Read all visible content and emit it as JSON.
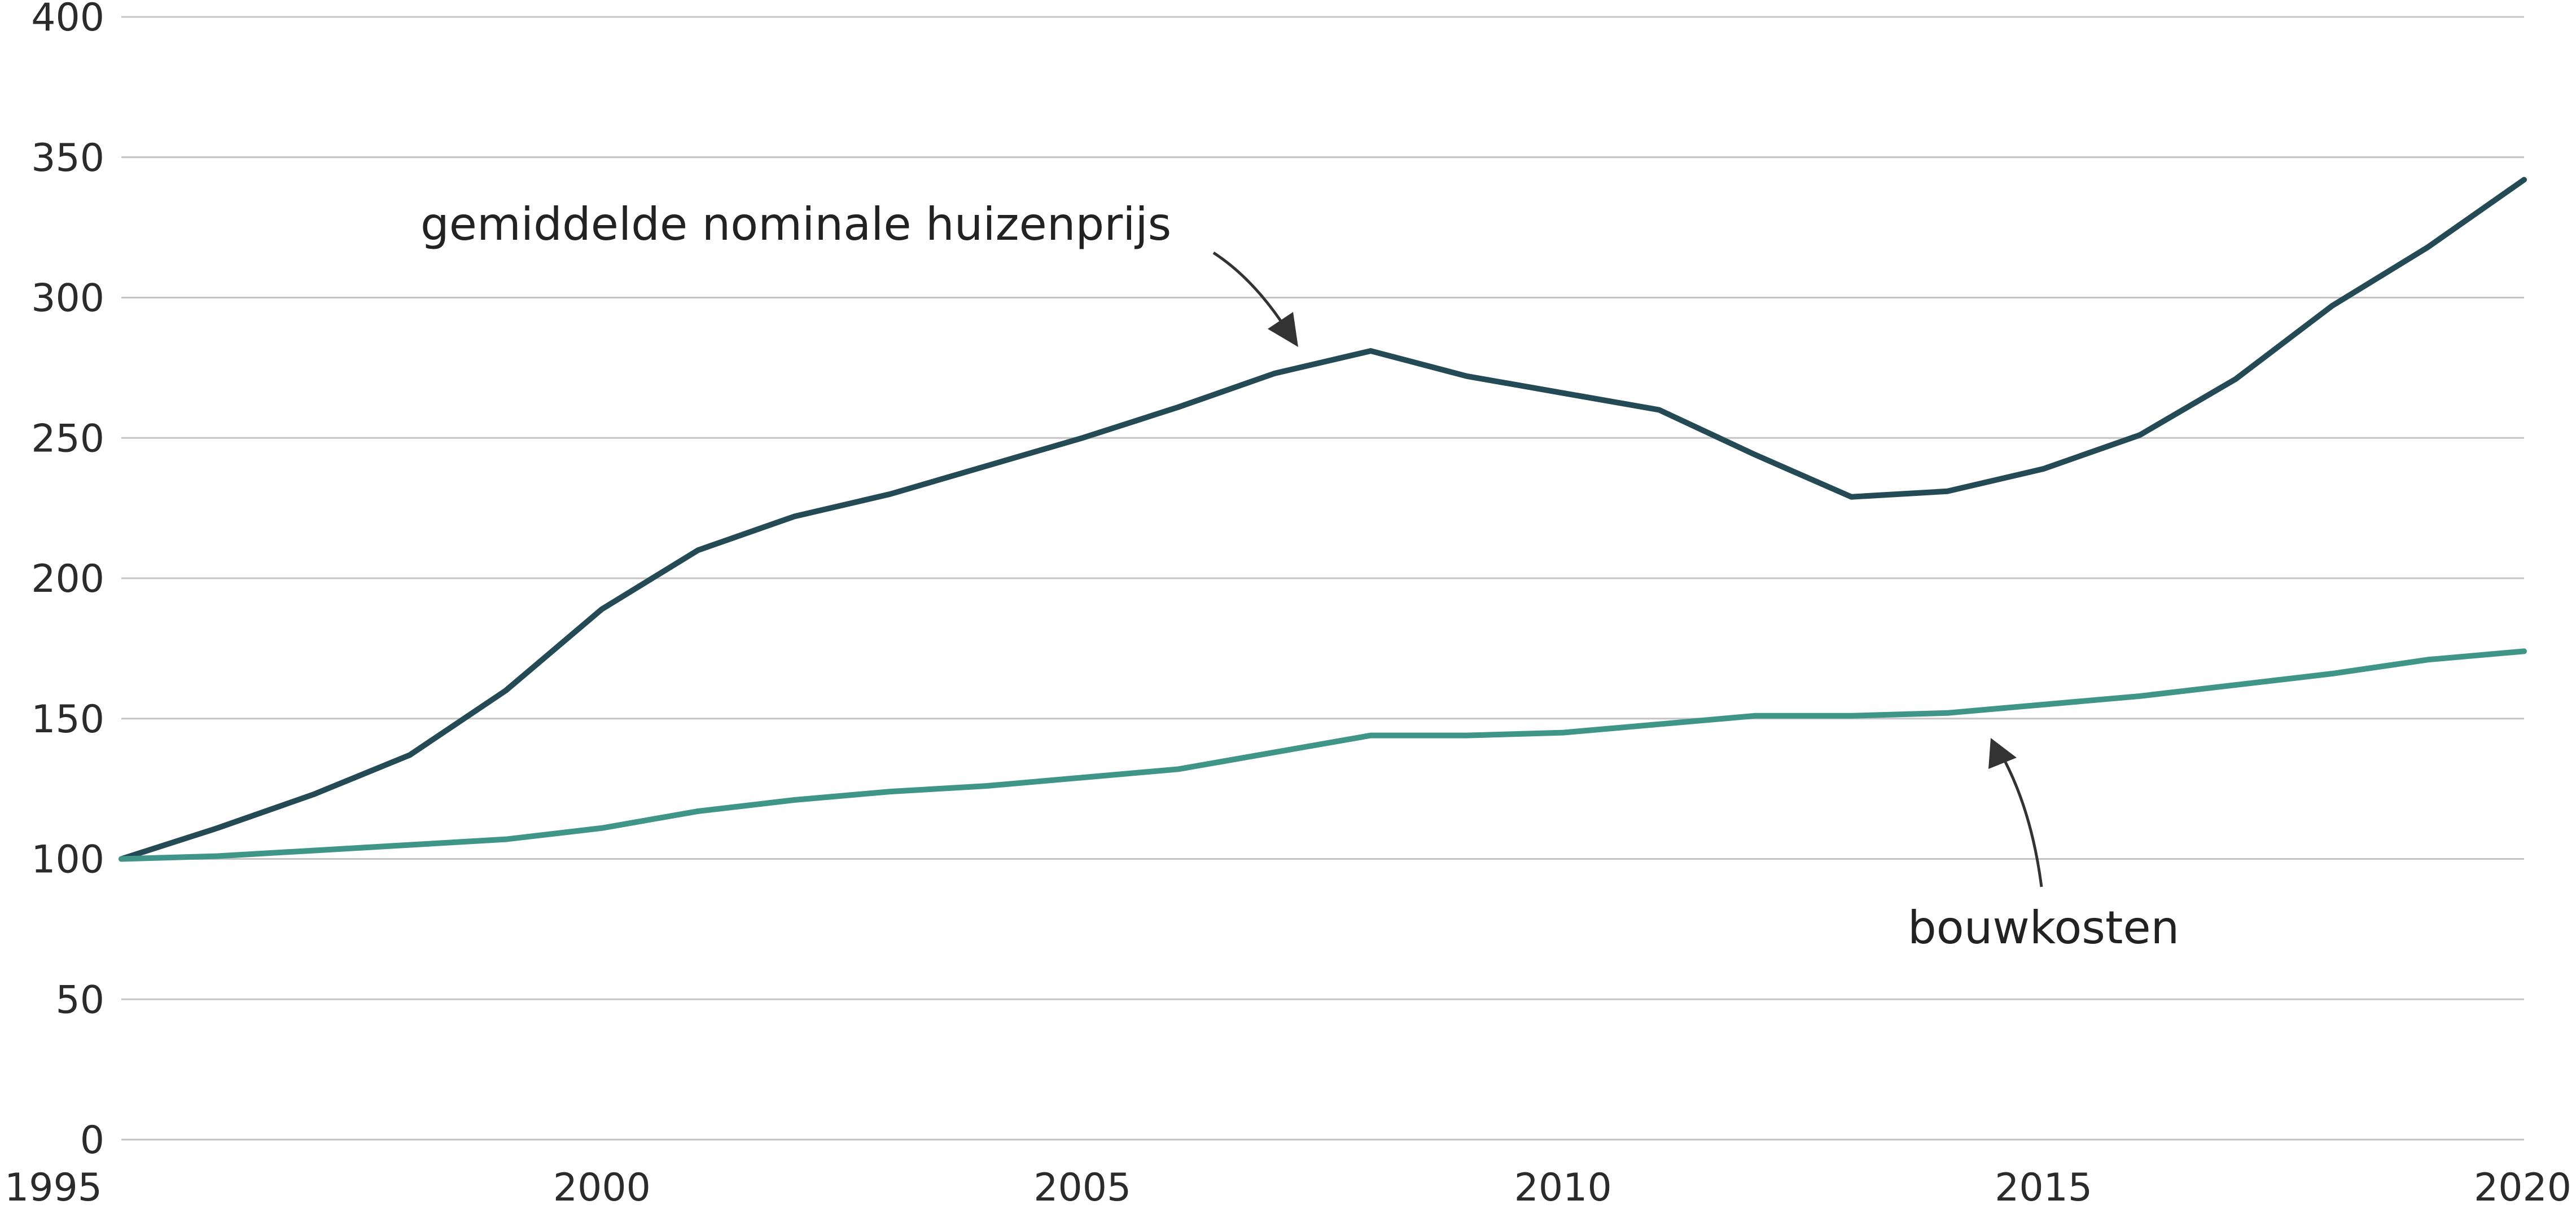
{
  "chart_data": {
    "type": "line",
    "title": "",
    "xlabel": "",
    "ylabel": "",
    "xlim": [
      1995,
      2020
    ],
    "ylim": [
      0,
      400
    ],
    "grid": true,
    "legend": "none",
    "x_ticks": [
      "1995",
      "2000",
      "2005",
      "2010",
      "2015",
      "2020"
    ],
    "y_ticks": [
      "0",
      "50",
      "100",
      "150",
      "200",
      "250",
      "300",
      "350",
      "400"
    ],
    "x": [
      1995,
      1996,
      1997,
      1998,
      1999,
      2000,
      2001,
      2002,
      2003,
      2004,
      2005,
      2006,
      2007,
      2008,
      2009,
      2010,
      2011,
      2012,
      2013,
      2014,
      2015,
      2016,
      2017,
      2018,
      2019,
      2020
    ],
    "series": [
      {
        "values": [
          100,
          111,
          123,
          137,
          160,
          189,
          210,
          222,
          230,
          240,
          250,
          261,
          273,
          281,
          272,
          266,
          260,
          244,
          229,
          231,
          239,
          251,
          271,
          297,
          318,
          342
        ],
        "color": "#234a55"
      },
      {
        "values": [
          100,
          101,
          103,
          105,
          107,
          111,
          117,
          121,
          124,
          126,
          129,
          132,
          138,
          144,
          144,
          145,
          148,
          151,
          151,
          152,
          155,
          158,
          162,
          166,
          171,
          174
        ],
        "color": "#3f9587"
      }
    ],
    "annotations": [
      {
        "text": "gemiddelde nominale huizenprijs",
        "series_index": 0
      },
      {
        "text": "bouwkosten",
        "series_index": 1
      }
    ]
  }
}
